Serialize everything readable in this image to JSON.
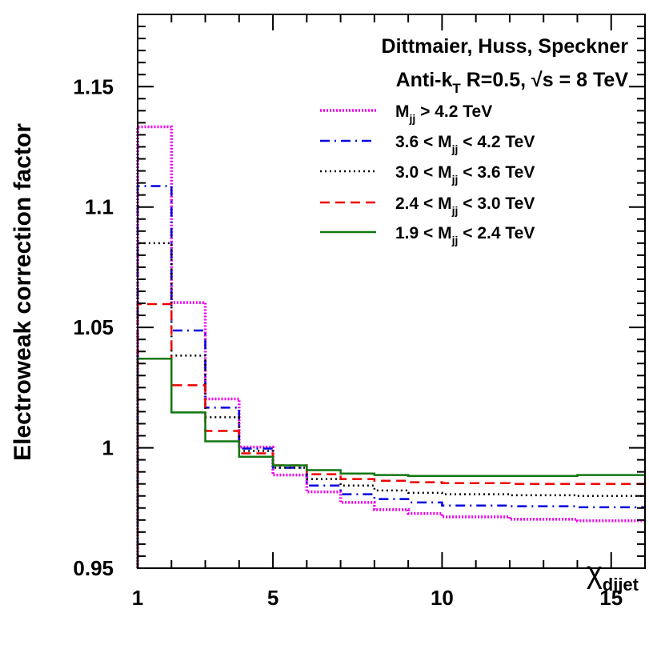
{
  "chart_data": {
    "type": "line",
    "step": true,
    "annotations": [
      "Dittmaier, Huss, Speckner",
      "Anti-k",
      "T",
      " R=0.5, ",
      "√s = 8 TeV"
    ],
    "xlabel": "χ",
    "xlabel_sub": "dijet",
    "ylabel": "Electroweak correction factor",
    "xlim": [
      1,
      16
    ],
    "ylim": [
      0.95,
      1.18
    ],
    "x_ticks": [
      1,
      5,
      10,
      15
    ],
    "x_tick_labels": [
      "1",
      "5",
      "10",
      "15"
    ],
    "y_ticks": [
      0.95,
      1.0,
      1.05,
      1.1,
      1.15
    ],
    "y_tick_labels": [
      "0.95",
      "1",
      "1.05",
      "1.1",
      "1.15"
    ],
    "grid": false,
    "legend_position": "top-right",
    "bin_edges": [
      1,
      2,
      3,
      4,
      5,
      6,
      7,
      8,
      9,
      10,
      12,
      14,
      16
    ],
    "series": [
      {
        "name": "M_jj > 4.2 TeV",
        "label_parts": [
          "M",
          "jj",
          " > 4.2 TeV"
        ],
        "color": "#ee00ee",
        "dash": "2,2",
        "width": 3.5,
        "values": [
          1.1333,
          1.0603,
          1.0203,
          1.0003,
          0.9887,
          0.9817,
          0.9773,
          0.9743,
          0.9727,
          0.9713,
          0.9703,
          0.9697
        ]
      },
      {
        "name": "3.6 < M_jj < 4.2 TeV",
        "label_parts": [
          "3.6 < M",
          "jj",
          " < 4.2 TeV"
        ],
        "color": "#0000dd",
        "dash": "12,6,2,6",
        "width": 2.5,
        "values": [
          1.1087,
          1.0487,
          1.0167,
          0.9997,
          0.9917,
          0.9843,
          0.9807,
          0.9787,
          0.9773,
          0.976,
          0.9757,
          0.9753
        ]
      },
      {
        "name": "3.0 < M_jj < 3.6 TeV",
        "label_parts": [
          "3.0 < M",
          "jj",
          " < 3.6 TeV"
        ],
        "color": "#000000",
        "dash": "2,4",
        "width": 2.5,
        "values": [
          1.085,
          1.0383,
          1.0127,
          0.9987,
          0.9917,
          0.987,
          0.9843,
          0.9823,
          0.9813,
          0.9807,
          0.9803,
          0.98
        ]
      },
      {
        "name": "2.4 < M_jj < 3.0 TeV",
        "label_parts": [
          "2.4 < M",
          "jj",
          " < 3.0 TeV"
        ],
        "color": "#ee0000",
        "dash": "12,7",
        "width": 2.5,
        "values": [
          1.0597,
          1.026,
          1.007,
          0.9977,
          0.9927,
          0.989,
          0.987,
          0.9863,
          0.9857,
          0.9853,
          0.985,
          0.985
        ]
      },
      {
        "name": "1.9 < M_jj < 2.4 TeV",
        "label_parts": [
          "1.9 < M",
          "jj",
          " < 2.4 TeV"
        ],
        "color": "#117711",
        "dash": "",
        "width": 2.5,
        "values": [
          1.037,
          1.0147,
          1.0027,
          0.9963,
          0.9927,
          0.9907,
          0.9893,
          0.9887,
          0.9883,
          0.9883,
          0.9883,
          0.9887
        ]
      }
    ]
  }
}
